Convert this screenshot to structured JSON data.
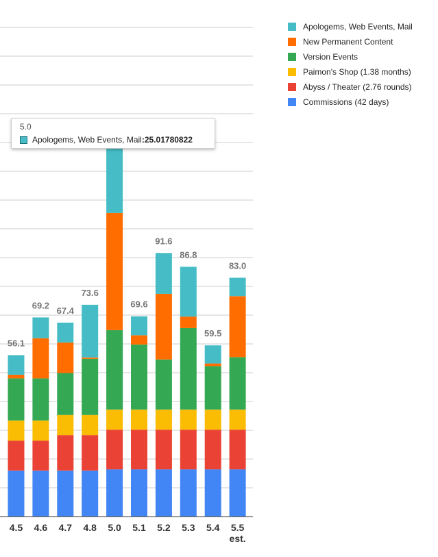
{
  "colors": {
    "commissions": "#4285f4",
    "abyss": "#ea4335",
    "shop": "#fbbc04",
    "events": "#34a853",
    "permanent": "#ff6d01",
    "apologems": "#46bdc6",
    "grid": "#cccccc",
    "axis": "#333333",
    "total_label": "#757575"
  },
  "chart_data": {
    "type": "bar",
    "stacked": true,
    "categories": [
      "4.5",
      "4.6",
      "4.7",
      "4.8",
      "5.0",
      "5.1",
      "5.2",
      "5.3",
      "5.4",
      "5.5 est."
    ],
    "category_lines": [
      [
        "4.5"
      ],
      [
        "4.6"
      ],
      [
        "4.7"
      ],
      [
        "4.8"
      ],
      [
        "5.0"
      ],
      [
        "5.1"
      ],
      [
        "5.2"
      ],
      [
        "5.3"
      ],
      [
        "5.4"
      ],
      [
        "5.5",
        "est."
      ]
    ],
    "series": [
      {
        "name": "Commissions (42 days)",
        "color": "#4285f4",
        "values": [
          16.0,
          16.0,
          16.0,
          16.0,
          16.4,
          16.4,
          16.4,
          16.4,
          16.4,
          16.4
        ]
      },
      {
        "name": "Abyss / Theater (2.76 rounds)",
        "color": "#ea4335",
        "values": [
          10.4,
          10.4,
          12.3,
          12.3,
          13.8,
          13.8,
          13.8,
          13.8,
          13.8,
          13.8
        ]
      },
      {
        "name": "Paimon's Shop (1.38 months)",
        "color": "#fbbc04",
        "values": [
          7.0,
          7.0,
          7.0,
          7.0,
          7.0,
          7.0,
          7.0,
          7.0,
          7.0,
          7.0
        ]
      },
      {
        "name": "Version Events",
        "color": "#34a853",
        "values": [
          14.6,
          14.6,
          14.6,
          19.5,
          27.6,
          22.6,
          17.4,
          28.3,
          15.1,
          18.2
        ]
      },
      {
        "name": "New Permanent Content",
        "color": "#ff6d01",
        "values": [
          1.3,
          14.0,
          10.6,
          0.5,
          40.7,
          3.2,
          22.8,
          4.0,
          0.9,
          21.2
        ]
      },
      {
        "name": "Apologems, Web Events, Mail",
        "color": "#46bdc6",
        "values": [
          6.8,
          7.2,
          6.9,
          18.3,
          25.0,
          6.6,
          14.2,
          17.3,
          6.3,
          6.4
        ]
      }
    ],
    "totals": [
      "56.1",
      "69.2",
      "67.4",
      "73.6",
      "",
      "69.6",
      "91.6",
      "86.8",
      "59.5",
      "83.0"
    ],
    "ylim": [
      0,
      170
    ],
    "grid": true,
    "legend_position": "right",
    "legend_order": [
      "Apologems, Web Events, Mail",
      "New Permanent Content",
      "Version Events",
      "Paimon's Shop (1.38 months)",
      "Abyss / Theater (2.76 rounds)",
      "Commissions (42 days)"
    ],
    "tooltip": {
      "title": "5.0",
      "series_name": "Apologems, Web Events, Mail",
      "separator": ": ",
      "value": "25.01780822"
    }
  }
}
